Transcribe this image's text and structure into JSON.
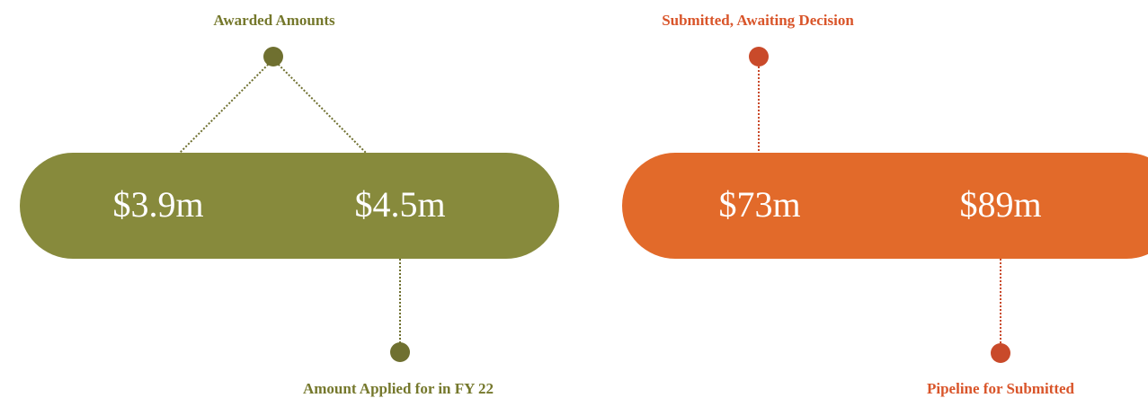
{
  "panels": [
    {
      "top_label": "Awarded Amounts",
      "amounts": [
        "$3.9m",
        "$4.5m"
      ],
      "bottom_label": "Amount Applied for in FY 22"
    },
    {
      "top_label": "Submitted, Awaiting Decision",
      "amounts": [
        "$73m",
        "$89m"
      ],
      "bottom_label": "Pipeline for Submitted"
    }
  ]
}
